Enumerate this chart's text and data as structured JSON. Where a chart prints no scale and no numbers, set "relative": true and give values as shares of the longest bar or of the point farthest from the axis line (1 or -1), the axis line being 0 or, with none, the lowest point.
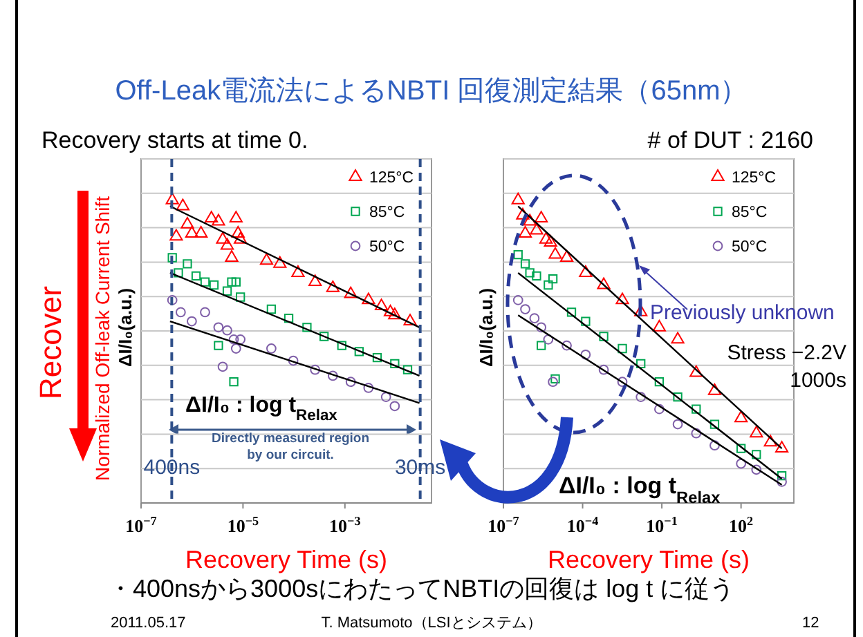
{
  "chart_data": [
    {
      "type": "scatter",
      "title": "Off-Leak電流法によるNBTI 回復測定結果（65nm）",
      "xlabel": "Recovery Time (s)",
      "ylabel": "ΔI/I₀(a.u.)",
      "relative": true,
      "log": "x",
      "grid": "y",
      "legend": "top right",
      "xlim": [
        1e-07,
        0.05
      ],
      "xticks": [
        {
          "value": 1e-07,
          "label": "10$^{−7}$"
        },
        {
          "value": 1e-05,
          "label": "10$^{−5}$"
        },
        {
          "value": 0.001,
          "label": "10$^{−3}$"
        }
      ],
      "ref_lines": [
        {
          "axis": "x",
          "value": 4e-07,
          "label": "400ns",
          "color": "#2f4f8a",
          "line_style": "dashed"
        },
        {
          "axis": "x",
          "value": 0.03,
          "label": "30ms",
          "color": "#2f4f8a",
          "line_style": "dashed"
        }
      ],
      "annotations": [
        "Recovery starts at time 0.",
        "Recover",
        "Normalized Off-leak Current Shift",
        "ΔI/I₀ : log t$_{Relax}$",
        "Directly measured region",
        "by our circuit.",
        "・400nsから3000sにわたってNBTIの回復は log t に従う",
        "2011.05.17",
        "T. Matsumoto（LSIとシステム）",
        "12"
      ],
      "series": [
        {
          "name": "125°C",
          "color": "#ff0000",
          "marker": "triangle",
          "x": [
            4.1e-07,
            4.9e-07,
            6.6e-07,
            8.1e-07,
            9.9e-07,
            1.5e-06,
            2.4e-06,
            3.3e-06,
            4e-06,
            4.9e-06,
            6e-06,
            7.3e-06,
            8e-06,
            8.9e-06,
            2.9e-05,
            5.3e-05,
            0.00012,
            0.00026,
            0.00058,
            0.0013,
            0.0029,
            0.0052,
            0.0078,
            0.0095,
            0.019
          ],
          "values": [
            1.0,
            0.88,
            0.98,
            0.92,
            0.89,
            0.89,
            0.94,
            0.93,
            0.87,
            0.85,
            0.81,
            0.94,
            0.89,
            0.87,
            0.8,
            0.79,
            0.76,
            0.73,
            0.71,
            0.69,
            0.67,
            0.65,
            0.63,
            0.62,
            0.6
          ]
        },
        {
          "name": "85°C",
          "color": "#00a651",
          "marker": "square",
          "x": [
            4.1e-07,
            5.4e-07,
            8.1e-07,
            1.2e-06,
            1.8e-06,
            2.7e-06,
            3.3e-06,
            4.9e-06,
            6e-06,
            6.6e-06,
            7.3e-06,
            8.9e-06,
            3.6e-05,
            7.9e-05,
            0.00018,
            0.00039,
            0.00087,
            0.0019,
            0.0043,
            0.0095,
            0.017
          ],
          "values": [
            0.81,
            0.76,
            0.79,
            0.75,
            0.73,
            0.72,
            0.52,
            0.7,
            0.73,
            0.4,
            0.73,
            0.68,
            0.64,
            0.61,
            0.58,
            0.55,
            0.52,
            0.5,
            0.48,
            0.46,
            0.44
          ]
        },
        {
          "name": "50°C",
          "color": "#7f5fa8",
          "marker": "circle",
          "x": [
            4.1e-07,
            6e-07,
            9.9e-07,
            1.8e-06,
            3.3e-06,
            4e-06,
            4.9e-06,
            6.6e-06,
            7.3e-06,
            8.9e-06,
            3.6e-05,
            9.7e-05,
            0.00026,
            0.00058,
            0.0013,
            0.0029,
            0.0064,
            0.0095
          ],
          "values": [
            0.67,
            0.63,
            0.6,
            0.63,
            0.58,
            0.45,
            0.57,
            0.54,
            0.51,
            0.54,
            0.51,
            0.47,
            0.44,
            0.42,
            0.4,
            0.38,
            0.35,
            0.32
          ]
        },
        {
          "type": "line",
          "color": "#000000",
          "x": [
            3.7e-07,
            0.029
          ],
          "values": [
            0.98,
            0.58
          ]
        },
        {
          "type": "line",
          "color": "#000000",
          "x": [
            3.7e-07,
            0.029
          ],
          "values": [
            0.76,
            0.42
          ]
        },
        {
          "type": "line",
          "color": "#000000",
          "x": [
            3.7e-07,
            0.029
          ],
          "values": [
            0.6,
            0.33
          ]
        }
      ]
    },
    {
      "type": "scatter",
      "xlabel": "Recovery Time (s)",
      "ylabel": "ΔI/I₀(a.u.)",
      "relative": true,
      "log": "x",
      "grid": "y",
      "legend": "top right",
      "xlim": [
        1e-07,
        10000.0
      ],
      "xticks": [
        {
          "value": 1e-07,
          "label": "10$^{−7}$"
        },
        {
          "value": 0.0001,
          "label": "10$^{−4}$"
        },
        {
          "value": 0.1,
          "label": "10$^{−1}$"
        },
        {
          "value": 100,
          "label": "10$^{2}$"
        }
      ],
      "annotations": [
        "# of DUT : 2160",
        "Previously unknown",
        "Stress  −2.2V",
        "1000s",
        "ΔI/I₀ : log t$_{Relax}$"
      ],
      "series": [
        {
          "name": "125°C",
          "color": "#ff0000",
          "marker": "triangle",
          "x": [
            3.6e-07,
            5.4e-07,
            6.7e-07,
            1e-06,
            1.8e-06,
            2.7e-06,
            4.1e-06,
            6.1e-06,
            9.2e-06,
            2.5e-05,
            0.00013,
            0.00063,
            0.0032,
            0.016,
            0.08,
            0.4,
            2.0,
            10,
            100,
            380,
            1300,
            3500
          ],
          "values": [
            1.0,
            0.95,
            0.89,
            0.93,
            0.9,
            0.94,
            0.87,
            0.86,
            0.82,
            0.81,
            0.76,
            0.72,
            0.67,
            0.63,
            0.58,
            0.54,
            0.43,
            0.37,
            0.28,
            0.23,
            0.2,
            0.18
          ]
        },
        {
          "name": "85°C",
          "color": "#00a651",
          "marker": "square",
          "x": [
            3.6e-07,
            6.7e-07,
            1e-06,
            1.8e-06,
            2.7e-06,
            5e-06,
            7.5e-06,
            9.2e-06,
            3.8e-05,
            0.00013,
            0.00063,
            0.0032,
            0.016,
            0.08,
            0.4,
            2.0,
            10,
            100,
            380,
            3500
          ],
          "values": [
            0.82,
            0.79,
            0.76,
            0.75,
            0.52,
            0.72,
            0.74,
            0.41,
            0.63,
            0.6,
            0.55,
            0.51,
            0.46,
            0.4,
            0.35,
            0.31,
            0.26,
            0.18,
            0.16,
            0.09
          ]
        },
        {
          "name": "50°C",
          "color": "#7f5fa8",
          "marker": "circle",
          "x": [
            3.6e-07,
            6.7e-07,
            1.5e-06,
            2.7e-06,
            5e-06,
            7.5e-06,
            2.5e-05,
            0.00013,
            0.00063,
            0.0032,
            0.016,
            0.08,
            0.4,
            2.0,
            10,
            100,
            380,
            3500
          ],
          "values": [
            0.67,
            0.64,
            0.61,
            0.58,
            0.54,
            0.4,
            0.52,
            0.49,
            0.44,
            0.4,
            0.35,
            0.31,
            0.26,
            0.23,
            0.19,
            0.13,
            0.11,
            0.07
          ]
        },
        {
          "type": "line",
          "color": "#000000",
          "x": [
            3.6e-07,
            3500
          ],
          "values": [
            0.98,
            0.18
          ]
        },
        {
          "type": "line",
          "color": "#000000",
          "x": [
            3.6e-07,
            3500
          ],
          "values": [
            0.76,
            0.08
          ]
        },
        {
          "type": "line",
          "color": "#000000",
          "x": [
            3.6e-07,
            3500
          ],
          "values": [
            0.62,
            0.06
          ]
        }
      ]
    }
  ]
}
